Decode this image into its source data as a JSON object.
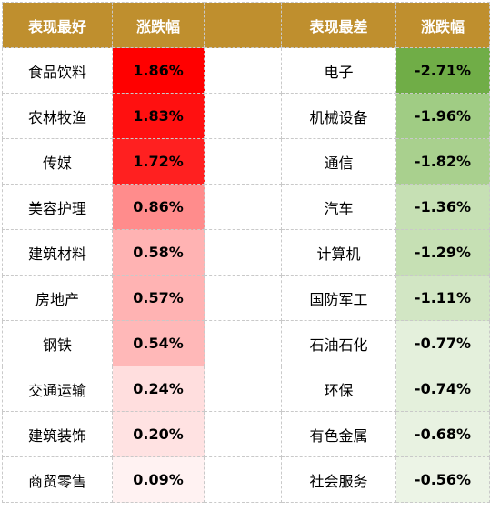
{
  "headers": {
    "best_label": "表现最好",
    "best_change": "涨跌幅",
    "worst_label": "表现最差",
    "worst_change": "涨跌幅"
  },
  "colors": {
    "header_bg": "#bf8f2e",
    "up_strong": "#ff0000",
    "down_strong": "#70ad47"
  },
  "rows": [
    {
      "best": "食品饮料",
      "best_pct": "1.86%",
      "best_color": "#ff0000",
      "worst": "电子",
      "worst_pct": "-2.71%",
      "worst_color": "#70ad47"
    },
    {
      "best": "农林牧渔",
      "best_pct": "1.83%",
      "best_color": "#ff1010",
      "worst": "机械设备",
      "worst_pct": "-1.96%",
      "worst_color": "#a0cc84"
    },
    {
      "best": "传媒",
      "best_pct": "1.72%",
      "best_color": "#ff2020",
      "worst": "通信",
      "worst_pct": "-1.82%",
      "worst_color": "#a9d08e"
    },
    {
      "best": "美容护理",
      "best_pct": "0.86%",
      "best_color": "#ff8c8c",
      "worst": "汽车",
      "worst_pct": "-1.36%",
      "worst_color": "#c6e0b4"
    },
    {
      "best": "建筑材料",
      "best_pct": "0.58%",
      "best_color": "#ffb3b3",
      "worst": "计算机",
      "worst_pct": "-1.29%",
      "worst_color": "#c6e0b4"
    },
    {
      "best": "房地产",
      "best_pct": "0.57%",
      "best_color": "#ffb3b3",
      "worst": "国防军工",
      "worst_pct": "-1.11%",
      "worst_color": "#d2e6c4"
    },
    {
      "best": "钢铁",
      "best_pct": "0.54%",
      "best_color": "#ffb8b8",
      "worst": "石油石化",
      "worst_pct": "-0.77%",
      "worst_color": "#e4f0dc"
    },
    {
      "best": "交通运输",
      "best_pct": "0.24%",
      "best_color": "#ffdede",
      "worst": "环保",
      "worst_pct": "-0.74%",
      "worst_color": "#e4f0dc"
    },
    {
      "best": "建筑装饰",
      "best_pct": "0.20%",
      "best_color": "#ffe2e2",
      "worst": "有色金属",
      "worst_pct": "-0.68%",
      "worst_color": "#e8f2e1"
    },
    {
      "best": "商贸零售",
      "best_pct": "0.09%",
      "best_color": "#fff2f2",
      "worst": "社会服务",
      "worst_pct": "-0.56%",
      "worst_color": "#ecf4e6"
    }
  ]
}
